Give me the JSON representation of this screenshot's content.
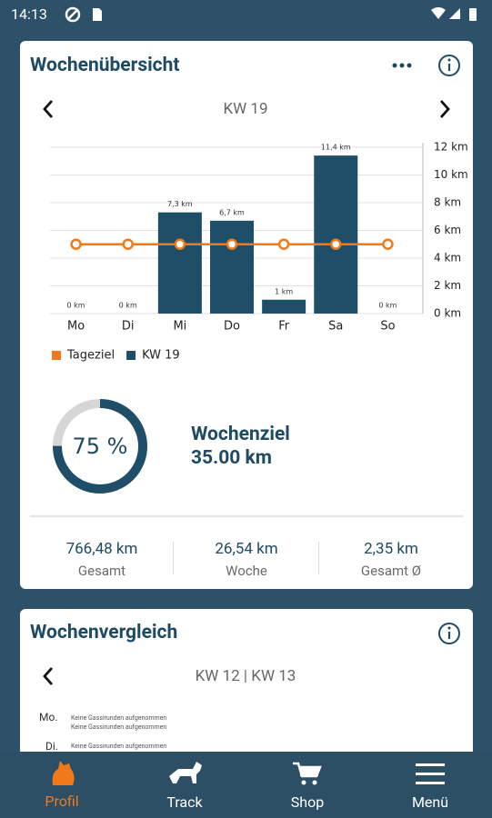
{
  "status_bar": {
    "time": "14:13"
  },
  "overview": {
    "title": "Wochenübersicht",
    "week": "KW 19",
    "chart_data": {
      "type": "bar",
      "categories": [
        "Mo",
        "Di",
        "Mi",
        "Do",
        "Fr",
        "Sa",
        "So"
      ],
      "series": [
        {
          "name": "Tageziel",
          "type": "line",
          "color": "#f07a1a",
          "values": [
            5,
            5,
            5,
            5,
            5,
            5,
            5
          ]
        },
        {
          "name": "KW 19",
          "type": "bar",
          "color": "#1f4e68",
          "values": [
            0,
            0,
            7.3,
            6.7,
            1,
            11.4,
            0
          ],
          "value_labels": [
            "0 km",
            "0 km",
            "7,3 km",
            "6,7 km",
            "1 km",
            "11,4 km",
            "0 km"
          ]
        }
      ],
      "ylim": [
        0,
        12
      ],
      "yticks": [
        {
          "value": 0,
          "label": "0 km"
        },
        {
          "value": 2,
          "label": "2 km"
        },
        {
          "value": 4,
          "label": "4 km"
        },
        {
          "value": 6,
          "label": "6 km"
        },
        {
          "value": 8,
          "label": "8 km"
        },
        {
          "value": 10,
          "label": "10 km"
        },
        {
          "value": 12,
          "label": "12 km"
        }
      ],
      "grid": true,
      "legend": "bottom-left"
    },
    "gauge": {
      "value": 75,
      "label": "75 %"
    },
    "goal": {
      "label": "Wochenziel",
      "value": "35.00 km"
    },
    "stats": [
      {
        "value": "766,48 km",
        "label": "Gesamt"
      },
      {
        "value": "26,54 km",
        "label": "Woche"
      },
      {
        "value": "2,35 km",
        "label": "Gesamt Ø"
      }
    ]
  },
  "comparison": {
    "title": "Wochenvergleich",
    "weeks": "KW 12 | KW 13",
    "rows": [
      {
        "day": "Mo.",
        "lines": [
          "Keine Gassirunden aufgenommen",
          "Keine Gassirunden aufgenommen"
        ]
      },
      {
        "day": "Di.",
        "lines": [
          "Keine Gassirunden aufgenommen"
        ]
      }
    ]
  },
  "nav": [
    "Profil",
    "Track",
    "Shop",
    "Menü"
  ]
}
